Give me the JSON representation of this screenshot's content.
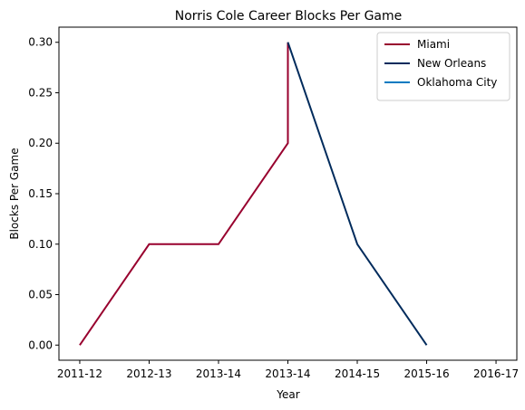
{
  "chart_data": {
    "type": "line",
    "title": "Norris Cole Career Blocks Per Game",
    "xlabel": "Year",
    "ylabel": "Blocks Per Game",
    "x_tick_labels": [
      "2011-12",
      "2012-13",
      "2013-14",
      "2013-14",
      "2014-15",
      "2015-16",
      "2016-17"
    ],
    "xlim": [
      -0.3,
      6.3
    ],
    "ylim": [
      -0.015,
      0.315
    ],
    "y_ticks": [
      0.0,
      0.05,
      0.1,
      0.15,
      0.2,
      0.25,
      0.3
    ],
    "y_tick_labels": [
      "0.00",
      "0.05",
      "0.10",
      "0.15",
      "0.20",
      "0.25",
      "0.30"
    ],
    "grid": false,
    "legend_position": "top-right",
    "series": [
      {
        "name": "Miami",
        "color": "#98002e",
        "x": [
          0,
          1,
          2,
          3,
          3.0,
          3.0
        ],
        "y": [
          0.0,
          0.1,
          0.1,
          0.2,
          0.2,
          0.3
        ],
        "points": [
          [
            0,
            0.0
          ],
          [
            1,
            0.1
          ],
          [
            2,
            0.1
          ],
          [
            3,
            0.2
          ],
          [
            3,
            0.3
          ]
        ]
      },
      {
        "name": "New Orleans",
        "color": "#002b5c",
        "points": [
          [
            3,
            0.3
          ],
          [
            4,
            0.1
          ],
          [
            5,
            0.0
          ]
        ]
      },
      {
        "name": "Oklahoma City",
        "color": "#007ac1",
        "points": []
      }
    ]
  }
}
